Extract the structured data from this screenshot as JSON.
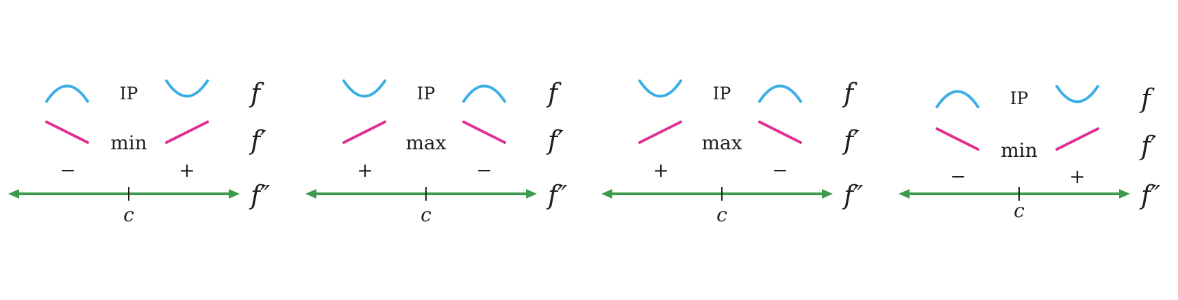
{
  "colors": {
    "concavity": "#3aaee5",
    "slope": "#df2f8e",
    "number_line": "#3c9a4c",
    "text": "#1f1f1f"
  },
  "panels": [
    {
      "concavity": [
        "concave-down",
        "concave-up"
      ],
      "ip_label": "IP",
      "slope": [
        "decreasing",
        "increasing"
      ],
      "extremum_label": "min",
      "signs": [
        "−",
        "+"
      ],
      "point_label": "c",
      "function_labels": [
        "f",
        "f′",
        "f″"
      ]
    },
    {
      "concavity": [
        "concave-up",
        "concave-down"
      ],
      "ip_label": "IP",
      "slope": [
        "increasing",
        "decreasing"
      ],
      "extremum_label": "max",
      "signs": [
        "+",
        "−"
      ],
      "point_label": "c",
      "function_labels": [
        "f",
        "f′",
        "f″"
      ]
    },
    {
      "concavity": [
        "concave-up",
        "concave-down"
      ],
      "ip_label": "IP",
      "slope": [
        "increasing",
        "decreasing"
      ],
      "extremum_label": "max",
      "signs": [
        "+",
        "−"
      ],
      "point_label": "c",
      "function_labels": [
        "f",
        "f′",
        "f″"
      ]
    },
    {
      "concavity": [
        "concave-down",
        "concave-up"
      ],
      "ip_label": "IP",
      "slope": [
        "decreasing",
        "increasing"
      ],
      "extremum_label": "min",
      "signs": [
        "−",
        "+"
      ],
      "point_label": "c",
      "function_labels": [
        "f",
        "f′",
        "f″"
      ]
    }
  ]
}
